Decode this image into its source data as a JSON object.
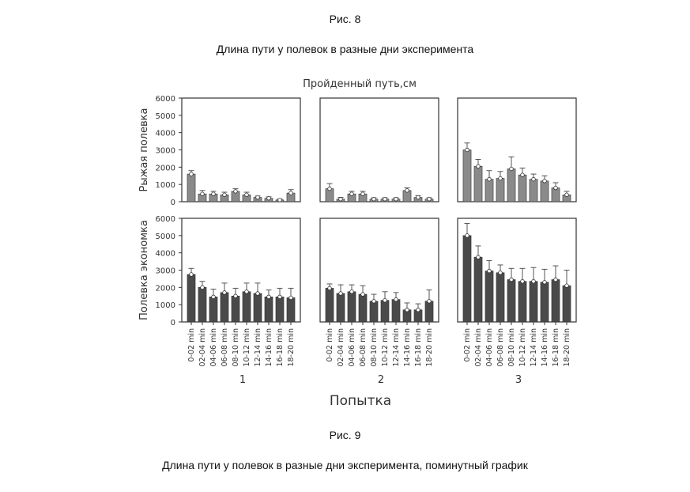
{
  "captions": {
    "top_label": "Рис. 8",
    "top_text": "Длина пути у полевок в разные дни эксперимента",
    "bottom_label": "Рис. 9",
    "bottom_text": "Длина пути у полевок в разные дни эксперимента, поминутный график"
  },
  "chart_data": {
    "type": "bar",
    "title": "Пройденный путь,см",
    "xlabel": "Попытка",
    "ylim": [
      0,
      6000
    ],
    "yticks": [
      0,
      1000,
      2000,
      3000,
      4000,
      5000,
      6000
    ],
    "grid": false,
    "categories": [
      "0-02 min",
      "02-04 min",
      "04-06 min",
      "06-08 min",
      "08-10 min",
      "10-12 min",
      "12-14 min",
      "14-16 min",
      "16-18 min",
      "18-20 min"
    ],
    "columns": [
      "1",
      "2",
      "3"
    ],
    "colors": {
      "row1": "#8a8a8a",
      "row2": "#4a4a4a",
      "frame": "#333333"
    },
    "rows": [
      {
        "label": "Рыжая полевка",
        "panels": [
          {
            "values": [
              1600,
              450,
              450,
              400,
              600,
              400,
              250,
              200,
              100,
              500
            ],
            "errors": [
              200,
              200,
              150,
              150,
              150,
              150,
              80,
              80,
              50,
              200
            ]
          },
          {
            "values": [
              750,
              150,
              450,
              450,
              150,
              150,
              150,
              650,
              250,
              150
            ],
            "errors": [
              300,
              100,
              150,
              150,
              80,
              80,
              80,
              150,
              100,
              80
            ]
          },
          {
            "values": [
              3000,
              2050,
              1300,
              1350,
              1900,
              1550,
              1300,
              1200,
              800,
              400
            ],
            "errors": [
              400,
              400,
              500,
              400,
              700,
              400,
              300,
              300,
              300,
              200
            ]
          }
        ]
      },
      {
        "label": "Полевка экономка",
        "panels": [
          {
            "values": [
              2750,
              2000,
              1450,
              1700,
              1500,
              1750,
              1650,
              1450,
              1450,
              1400
            ],
            "errors": [
              350,
              350,
              450,
              550,
              450,
              500,
              600,
              400,
              500,
              550
            ]
          },
          {
            "values": [
              1950,
              1650,
              1750,
              1600,
              1200,
              1250,
              1300,
              700,
              700,
              1200
            ],
            "errors": [
              250,
              500,
              400,
              500,
              400,
              500,
              400,
              400,
              350,
              650
            ]
          },
          {
            "values": [
              5000,
              3750,
              2950,
              2850,
              2450,
              2350,
              2350,
              2300,
              2450,
              2100
            ],
            "errors": [
              700,
              650,
              600,
              450,
              650,
              750,
              800,
              750,
              800,
              900
            ]
          }
        ]
      }
    ]
  }
}
